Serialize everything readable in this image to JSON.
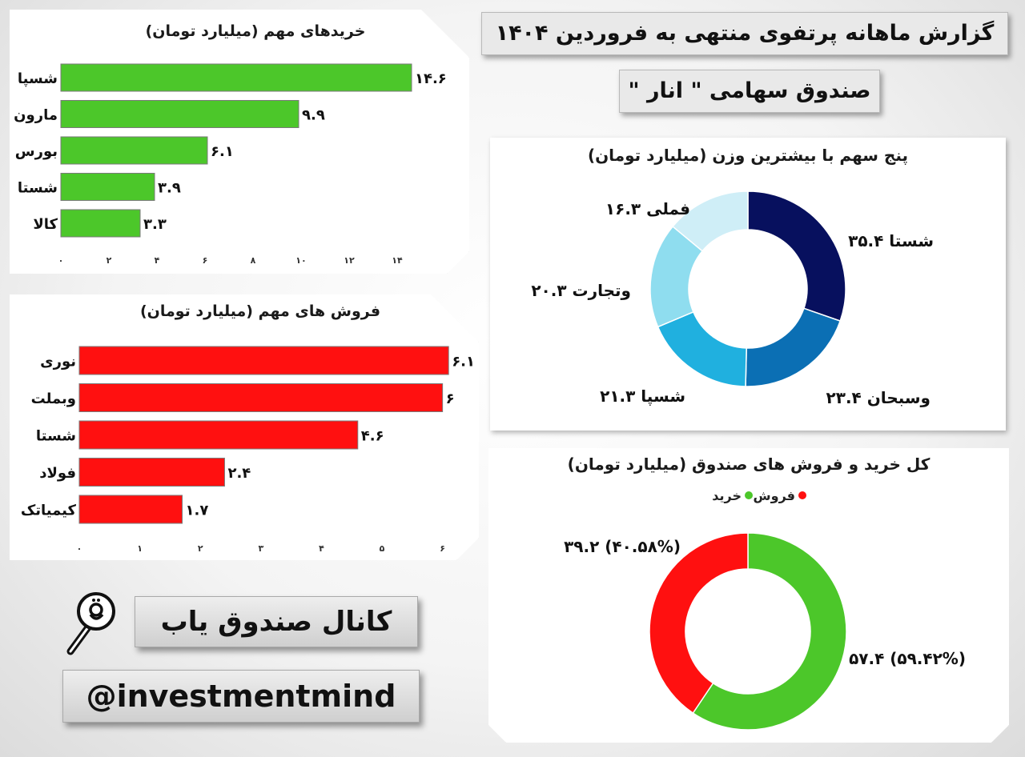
{
  "header": {
    "title": "گزارش ماهانه پرتفوی منتهی به فروردین ۱۴۰۴",
    "fund_name": "صندوق سهامی \" انار \""
  },
  "branding": {
    "channel": "کانال صندوق یاب",
    "handle": "@investmentmind"
  },
  "colors": {
    "buy": "#4cc72a",
    "sell": "#ff1010",
    "donut": [
      "#07105e",
      "#0b6fb4",
      "#20b0df",
      "#8fddef",
      "#cfeef7"
    ]
  },
  "chart_data": [
    {
      "id": "top-buys",
      "type": "bar",
      "title": "خریدهای مهم (میلیارد تومان)",
      "categories": [
        "شسپا",
        "مارون",
        "بورس",
        "شستا",
        "کالا"
      ],
      "values": [
        14.6,
        9.9,
        6.1,
        3.9,
        3.3
      ],
      "value_labels": [
        "۱۴.۶",
        "۹.۹",
        "۶.۱",
        "۳.۹",
        "۳.۳"
      ],
      "xlim": [
        0,
        16
      ],
      "ticks": [
        0,
        2,
        4,
        6,
        8,
        10,
        12,
        14
      ],
      "tick_labels": [
        "۰",
        "۲",
        "۴",
        "۶",
        "۸",
        "۱۰",
        "۱۲",
        "۱۴"
      ],
      "grid": false
    },
    {
      "id": "top-sells",
      "type": "bar",
      "title": "فروش های مهم (میلیارد تومان)",
      "categories": [
        "نوری",
        "وبملت",
        "شستا",
        "فولاد",
        "کیمیاتک"
      ],
      "values": [
        6.1,
        6,
        4.6,
        2.4,
        1.7
      ],
      "value_labels": [
        "۶.۱",
        "۶",
        "۴.۶",
        "۲.۴",
        "۱.۷"
      ],
      "xlim": [
        0,
        6.6
      ],
      "ticks": [
        0,
        1,
        2,
        3,
        4,
        5,
        6
      ],
      "tick_labels": [
        "۰",
        "۱",
        "۲",
        "۳",
        "۴",
        "۵",
        "۶"
      ],
      "grid": false
    },
    {
      "id": "top-holdings",
      "type": "pie",
      "title": "پنج سهم با بیشترین وزن (میلیارد تومان)",
      "labels": [
        "شستا",
        "وسبحان",
        "شسپا",
        "وتجارت",
        "فملی"
      ],
      "values": [
        35.4,
        23.4,
        21.3,
        20.3,
        16.3
      ],
      "slice_labels": [
        "۳۵.۴ شستا",
        "۲۳.۴ وسبحان",
        "۲۱.۳ شسپا",
        "۲۰.۳ وتجارت",
        "۱۶.۳ فملی"
      ]
    },
    {
      "id": "buy-sell-total",
      "type": "pie",
      "title": "کل خرید و فروش های صندوق (میلیارد تومان)",
      "labels": [
        "خرید",
        "فروش"
      ],
      "values": [
        57.4,
        39.2
      ],
      "percents": [
        59.42,
        40.58
      ],
      "slice_labels": [
        "۵۷.۴ (۵۹.۴۲%)",
        "۳۹.۲ (۴۰.۵۸%)"
      ],
      "legend": [
        "فروش",
        "خرید"
      ],
      "legend_placement": "top"
    }
  ]
}
